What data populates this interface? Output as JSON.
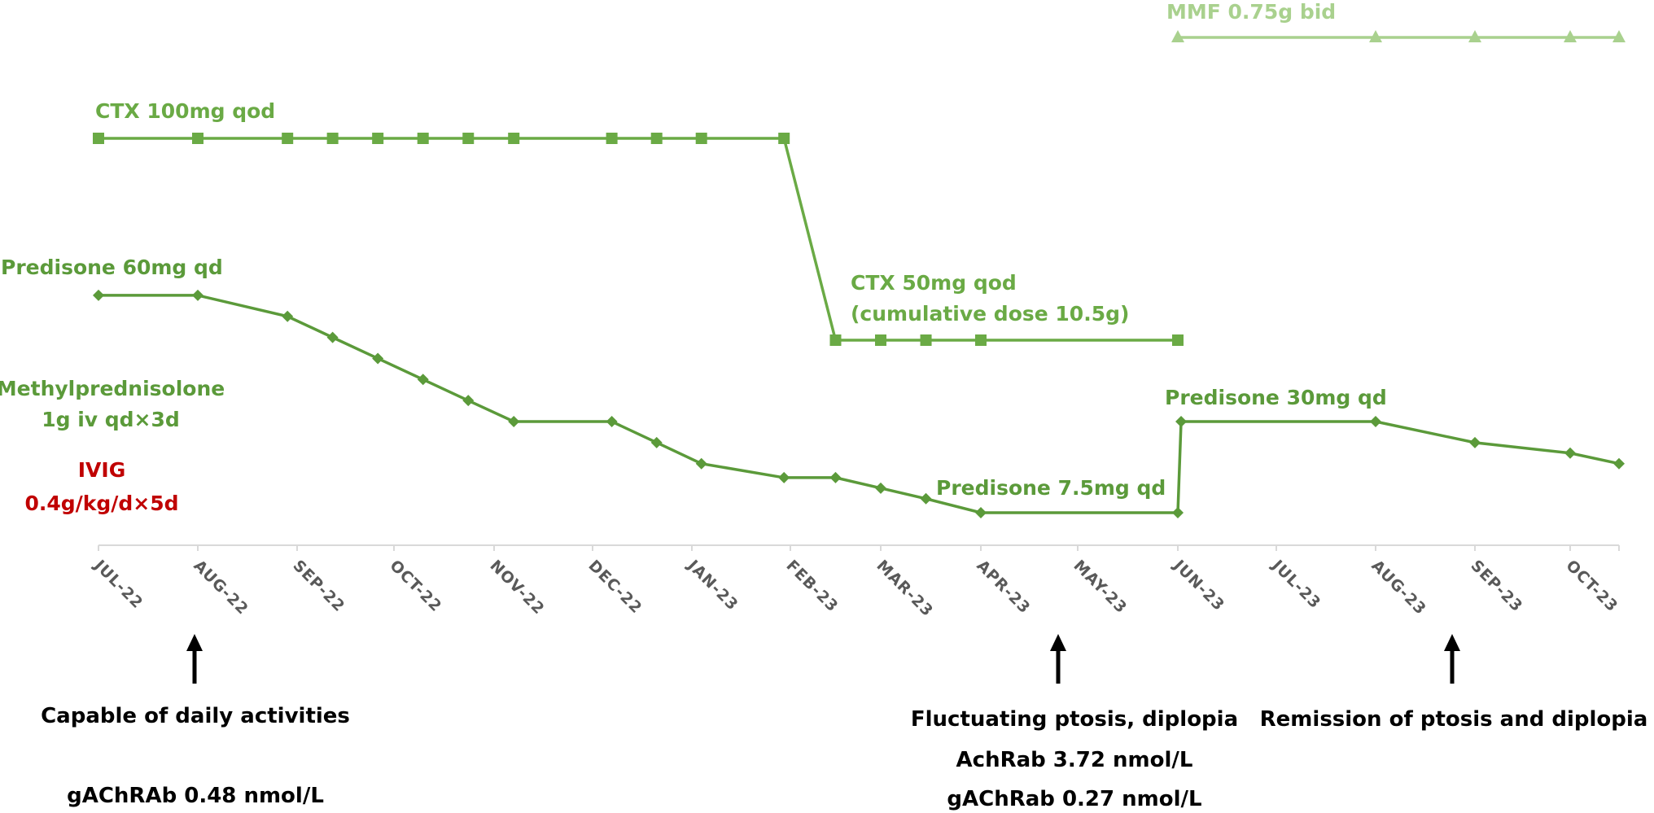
{
  "chart_data": {
    "type": "line",
    "title": "",
    "xlabel": "",
    "ylabel": "",
    "grid": false,
    "x_tick_labels": [
      "JUL-22",
      "AUG-22",
      "SEP-22",
      "OCT-22",
      "NOV-22",
      "DEC-22",
      "JAN-23",
      "FEB-23",
      "MAR-23",
      "APR-23",
      "MAY-23",
      "JUN-23",
      "JUL-23",
      "AUG-23",
      "SEP-23",
      "OCT-23"
    ],
    "colors": {
      "prednisone": "#5b9a3a",
      "ctx": "#6aaa45",
      "mmf": "#a9d18e",
      "ivig": "#c00000",
      "notes": "#000000",
      "axis": "#d9d9d9",
      "ticks": "#595959"
    },
    "series": [
      {
        "id": "mmf",
        "marker": "triangle",
        "points": [
          {
            "x": "2023-06-01",
            "y": 9.8
          },
          {
            "x": "2023-08-01",
            "y": 9.8
          },
          {
            "x": "2023-09-01",
            "y": 9.8
          },
          {
            "x": "2023-10-01",
            "y": 9.8
          },
          {
            "x": "2023-10-16",
            "y": 9.8
          }
        ]
      },
      {
        "id": "ctx",
        "marker": "square",
        "points": [
          {
            "x": "2022-07-01",
            "y": 8.2
          },
          {
            "x": "2022-08-01",
            "y": 8.2
          },
          {
            "x": "2022-08-29",
            "y": 8.2
          },
          {
            "x": "2022-09-12",
            "y": 8.2
          },
          {
            "x": "2022-09-26",
            "y": 8.2
          },
          {
            "x": "2022-10-10",
            "y": 8.2
          },
          {
            "x": "2022-10-24",
            "y": 8.2
          },
          {
            "x": "2022-11-07",
            "y": 8.2
          },
          {
            "x": "2022-12-07",
            "y": 8.2
          },
          {
            "x": "2022-12-21",
            "y": 8.2
          },
          {
            "x": "2023-01-04",
            "y": 8.2
          },
          {
            "x": "2023-01-30",
            "y": 8.2
          },
          {
            "x": "2023-02-15",
            "y": 5.0
          },
          {
            "x": "2023-03-01",
            "y": 5.0
          },
          {
            "x": "2023-03-15",
            "y": 5.0
          },
          {
            "x": "2023-04-01",
            "y": 5.0
          },
          {
            "x": "2023-06-01",
            "y": 5.0
          }
        ]
      },
      {
        "id": "prednisone",
        "marker": "diamond",
        "points": [
          {
            "x": "2022-07-01",
            "y": 5.6
          },
          {
            "x": "2022-08-01",
            "y": 5.6
          },
          {
            "x": "2022-08-29",
            "y": 5.3
          },
          {
            "x": "2022-09-12",
            "y": 5.0
          },
          {
            "x": "2022-09-26",
            "y": 4.7
          },
          {
            "x": "2022-10-10",
            "y": 4.4
          },
          {
            "x": "2022-10-24",
            "y": 4.1
          },
          {
            "x": "2022-11-07",
            "y": 3.8
          },
          {
            "x": "2022-12-07",
            "y": 3.8
          },
          {
            "x": "2022-12-21",
            "y": 3.5
          },
          {
            "x": "2023-01-04",
            "y": 3.2
          },
          {
            "x": "2023-01-30",
            "y": 3.0
          },
          {
            "x": "2023-02-15",
            "y": 3.0
          },
          {
            "x": "2023-03-01",
            "y": 2.85
          },
          {
            "x": "2023-03-15",
            "y": 2.7
          },
          {
            "x": "2023-04-01",
            "y": 2.5
          },
          {
            "x": "2023-06-01",
            "y": 2.5
          },
          {
            "x": "2023-06-02",
            "y": 3.8
          },
          {
            "x": "2023-08-01",
            "y": 3.8
          },
          {
            "x": "2023-09-01",
            "y": 3.5
          },
          {
            "x": "2023-10-01",
            "y": 3.35
          },
          {
            "x": "2023-10-16",
            "y": 3.2
          }
        ]
      }
    ],
    "annotations": [
      {
        "id": "mmf-label",
        "lines": [
          "MMF 0.75g bid"
        ],
        "color": "mmf"
      },
      {
        "id": "ctx100-label",
        "lines": [
          "CTX 100mg qod"
        ],
        "color": "ctx"
      },
      {
        "id": "ctx50-label",
        "lines": [
          "CTX 50mg qod",
          "(cumulative dose 10.5g)"
        ],
        "color": "ctx"
      },
      {
        "id": "pred60-label",
        "lines": [
          "Predisone 60mg qd"
        ],
        "color": "prednisone"
      },
      {
        "id": "mp-label",
        "lines": [
          "Methylprednisolone",
          "1g iv qd×3d"
        ],
        "color": "prednisone"
      },
      {
        "id": "ivig-label",
        "lines": [
          "IVIG",
          "0.4g/kg/d×5d"
        ],
        "color": "ivig"
      },
      {
        "id": "pred75-label",
        "lines": [
          "Predisone 7.5mg qd"
        ],
        "color": "prednisone"
      },
      {
        "id": "pred30-label",
        "lines": [
          "Predisone 30mg qd"
        ],
        "color": "prednisone"
      }
    ],
    "events": [
      {
        "id": "event-aug22",
        "x": "2022-08-01",
        "lines": [
          "Capable of daily activities",
          "",
          "gAChRAb 0.48 nmol/L"
        ]
      },
      {
        "id": "event-may23",
        "x": "2023-05-01",
        "lines": [
          "Fluctuating ptosis, diplopia",
          "AchRab  3.72 nmol/L",
          "gAChRab 0.27 nmol/L"
        ]
      },
      {
        "id": "event-sep23",
        "x": "2023-09-01",
        "lines": [
          "Remission of ptosis and diplopia"
        ]
      }
    ]
  }
}
